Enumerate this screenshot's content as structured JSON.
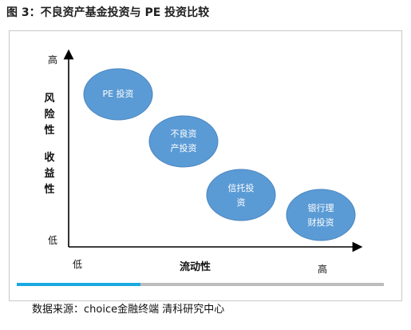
{
  "figure_title": "图 3：不良资产基金投资与 PE 投资比较",
  "axes": {
    "y_title_top": [
      "风",
      "险",
      "性"
    ],
    "y_title_bottom": [
      "收",
      "益",
      "性"
    ],
    "y_high": "高",
    "y_low": "低",
    "x_title": "流动性",
    "x_low": "低",
    "x_high": "高"
  },
  "bubbles": [
    {
      "lines": [
        "PE 投资"
      ]
    },
    {
      "lines": [
        "不良资",
        "产投资"
      ]
    },
    {
      "lines": [
        "信托投",
        "资"
      ]
    },
    {
      "lines": [
        "银行理",
        "财投资"
      ]
    }
  ],
  "colors": {
    "bubble_fill": "#5b9bd5",
    "bubble_stroke": "#4a86bf",
    "accent_bar": "#1aa8e0",
    "gray_bar": "#bdbdbd"
  },
  "source": "数据来源：choice金融终端  清科研究中心"
}
